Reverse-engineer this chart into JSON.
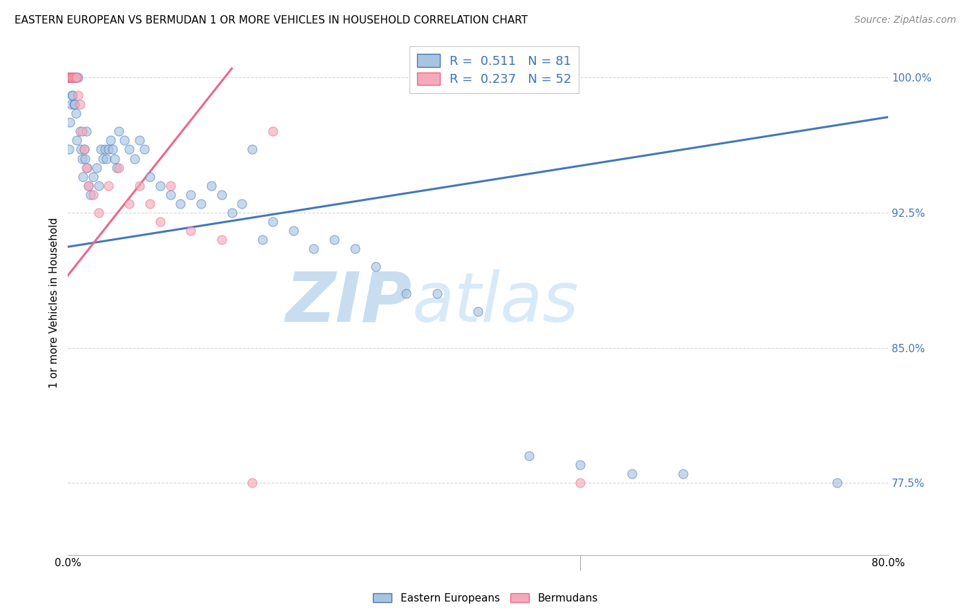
{
  "title": "EASTERN EUROPEAN VS BERMUDAN 1 OR MORE VEHICLES IN HOUSEHOLD CORRELATION CHART",
  "source": "Source: ZipAtlas.com",
  "ylabel": "1 or more Vehicles in Household",
  "legend_blue_label": "Eastern Europeans",
  "legend_pink_label": "Bermudans",
  "r_blue": "0.511",
  "n_blue": "81",
  "r_pink": "0.237",
  "n_pink": "52",
  "blue_color": "#A8C4E0",
  "pink_color": "#F4AABB",
  "line_blue": "#4477BB",
  "line_pink": "#EE6688",
  "watermark_zip": "ZIP",
  "watermark_atlas": "atlas",
  "watermark_color": "#C8DDF0",
  "xlim": [
    0.0,
    0.8
  ],
  "ylim": [
    0.735,
    1.015
  ],
  "y_tick_positions": [
    0.775,
    0.85,
    0.925,
    1.0
  ],
  "y_tick_labels": [
    "77.5%",
    "85.0%",
    "92.5%",
    "100.0%"
  ],
  "x_tick_positions": [
    0.0,
    0.1,
    0.2,
    0.3,
    0.4,
    0.5,
    0.6,
    0.7,
    0.8
  ],
  "blue_line_x": [
    0.0,
    0.8
  ],
  "blue_line_y": [
    0.906,
    0.978
  ],
  "pink_line_x": [
    0.0,
    0.16
  ],
  "pink_line_y": [
    0.89,
    1.005
  ],
  "blue_points_x": [
    0.001,
    0.001,
    0.001,
    0.001,
    0.001,
    0.002,
    0.002,
    0.002,
    0.002,
    0.003,
    0.003,
    0.003,
    0.003,
    0.004,
    0.004,
    0.004,
    0.005,
    0.005,
    0.006,
    0.006,
    0.007,
    0.007,
    0.008,
    0.008,
    0.009,
    0.009,
    0.01,
    0.012,
    0.013,
    0.014,
    0.015,
    0.016,
    0.017,
    0.018,
    0.019,
    0.02,
    0.022,
    0.025,
    0.028,
    0.03,
    0.032,
    0.034,
    0.036,
    0.038,
    0.04,
    0.042,
    0.044,
    0.046,
    0.048,
    0.05,
    0.055,
    0.06,
    0.065,
    0.07,
    0.075,
    0.08,
    0.09,
    0.1,
    0.11,
    0.12,
    0.13,
    0.14,
    0.15,
    0.16,
    0.17,
    0.18,
    0.19,
    0.2,
    0.22,
    0.24,
    0.26,
    0.28,
    0.3,
    0.33,
    0.36,
    0.4,
    0.45,
    0.5,
    0.55,
    0.6,
    0.75
  ],
  "blue_points_y": [
    1.0,
    1.0,
    1.0,
    1.0,
    0.96,
    1.0,
    1.0,
    1.0,
    0.975,
    1.0,
    1.0,
    1.0,
    0.985,
    1.0,
    1.0,
    0.99,
    1.0,
    0.99,
    1.0,
    0.985,
    1.0,
    0.985,
    1.0,
    0.98,
    1.0,
    0.965,
    1.0,
    0.97,
    0.96,
    0.955,
    0.945,
    0.96,
    0.955,
    0.97,
    0.95,
    0.94,
    0.935,
    0.945,
    0.95,
    0.94,
    0.96,
    0.955,
    0.96,
    0.955,
    0.96,
    0.965,
    0.96,
    0.955,
    0.95,
    0.97,
    0.965,
    0.96,
    0.955,
    0.965,
    0.96,
    0.945,
    0.94,
    0.935,
    0.93,
    0.935,
    0.93,
    0.94,
    0.935,
    0.925,
    0.93,
    0.96,
    0.91,
    0.92,
    0.915,
    0.905,
    0.91,
    0.905,
    0.895,
    0.88,
    0.88,
    0.87,
    0.79,
    0.785,
    0.78,
    0.78,
    0.775
  ],
  "pink_points_x": [
    0.0002,
    0.0003,
    0.0004,
    0.0005,
    0.0006,
    0.0007,
    0.0008,
    0.0009,
    0.001,
    0.001,
    0.001,
    0.0012,
    0.0013,
    0.0014,
    0.0015,
    0.0016,
    0.0017,
    0.0018,
    0.002,
    0.002,
    0.002,
    0.0022,
    0.0024,
    0.003,
    0.003,
    0.003,
    0.004,
    0.005,
    0.006,
    0.007,
    0.008,
    0.009,
    0.01,
    0.012,
    0.014,
    0.016,
    0.018,
    0.02,
    0.025,
    0.03,
    0.04,
    0.05,
    0.06,
    0.07,
    0.08,
    0.09,
    0.1,
    0.12,
    0.15,
    0.18,
    0.2,
    0.5
  ],
  "pink_points_y": [
    1.0,
    1.0,
    1.0,
    1.0,
    1.0,
    1.0,
    1.0,
    1.0,
    1.0,
    1.0,
    1.0,
    1.0,
    1.0,
    1.0,
    1.0,
    1.0,
    1.0,
    1.0,
    1.0,
    1.0,
    1.0,
    1.0,
    1.0,
    1.0,
    1.0,
    1.0,
    1.0,
    1.0,
    1.0,
    1.0,
    1.0,
    1.0,
    0.99,
    0.985,
    0.97,
    0.96,
    0.95,
    0.94,
    0.935,
    0.925,
    0.94,
    0.95,
    0.93,
    0.94,
    0.93,
    0.92,
    0.94,
    0.915,
    0.91,
    0.775,
    0.97,
    0.775
  ]
}
